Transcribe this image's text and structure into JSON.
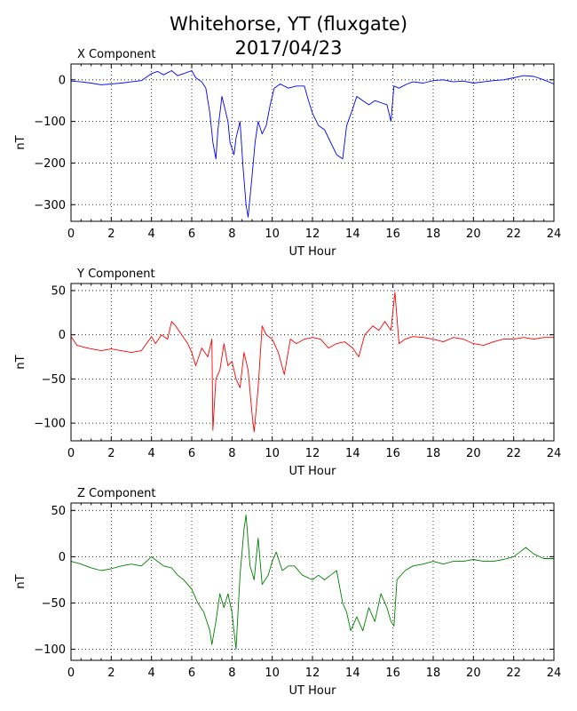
{
  "figure": {
    "title_line1": "Whitehorse, YT (fluxgate)",
    "title_line2": "2017/04/23"
  },
  "chart_data": [
    {
      "type": "line",
      "title": "X Component",
      "xlabel": "UT Hour",
      "ylabel": "nT",
      "xlim": [
        0,
        24
      ],
      "ylim": [
        -340,
        38
      ],
      "xticks": [
        0,
        2,
        4,
        6,
        8,
        10,
        12,
        14,
        16,
        18,
        20,
        22,
        24
      ],
      "yticks": [
        -300,
        -200,
        -100,
        0
      ],
      "ytick_labels": [
        "−300",
        "−200",
        "−100",
        "0"
      ],
      "grid": true,
      "color": "#0000ff",
      "x": [
        0,
        0.5,
        1,
        1.5,
        2,
        2.5,
        3,
        3.5,
        4,
        4.3,
        4.6,
        5,
        5.3,
        5.6,
        6,
        6.2,
        6.5,
        6.7,
        6.9,
        7.05,
        7.2,
        7.3,
        7.5,
        7.6,
        7.8,
        7.9,
        8.1,
        8.2,
        8.4,
        8.55,
        8.7,
        8.8,
        9,
        9.15,
        9.3,
        9.5,
        9.7,
        9.9,
        10.1,
        10.4,
        10.8,
        11.2,
        11.6,
        11.8,
        12,
        12.3,
        12.6,
        12.9,
        13.2,
        13.5,
        13.7,
        14,
        14.2,
        14.5,
        14.8,
        15.1,
        15.4,
        15.7,
        15.9,
        16.05,
        16.3,
        16.7,
        17,
        17.5,
        18,
        18.5,
        19,
        19.5,
        20,
        20.5,
        21,
        21.5,
        22,
        22.5,
        23,
        23.5,
        24
      ],
      "values": [
        -3,
        -5,
        -8,
        -12,
        -10,
        -8,
        -5,
        -2,
        15,
        20,
        12,
        22,
        10,
        15,
        22,
        5,
        -5,
        -20,
        -80,
        -150,
        -190,
        -120,
        -40,
        -60,
        -100,
        -150,
        -180,
        -140,
        -100,
        -210,
        -300,
        -330,
        -230,
        -150,
        -100,
        -130,
        -110,
        -60,
        -20,
        -10,
        -20,
        -15,
        -15,
        -50,
        -80,
        -110,
        -120,
        -150,
        -180,
        -190,
        -110,
        -70,
        -40,
        -50,
        -60,
        -50,
        -55,
        -60,
        -100,
        -15,
        -20,
        -10,
        -5,
        -8,
        -2,
        0,
        -5,
        -3,
        -8,
        -5,
        -2,
        0,
        5,
        10,
        8,
        0,
        -10
      ]
    },
    {
      "type": "line",
      "title": "Y Component",
      "xlabel": "UT Hour",
      "ylabel": "nT",
      "xlim": [
        0,
        24
      ],
      "ylim": [
        -120,
        58
      ],
      "xticks": [
        0,
        2,
        4,
        6,
        8,
        10,
        12,
        14,
        16,
        18,
        20,
        22,
        24
      ],
      "yticks": [
        -100,
        -50,
        0,
        50
      ],
      "ytick_labels": [
        "−100",
        "−50",
        "0",
        "50"
      ],
      "grid": true,
      "color": "#ff0000",
      "x": [
        0,
        0.3,
        0.8,
        1.5,
        2,
        2.5,
        3,
        3.5,
        4,
        4.2,
        4.5,
        4.8,
        5,
        5.2,
        5.5,
        5.8,
        6,
        6.2,
        6.5,
        6.8,
        7,
        7.05,
        7.2,
        7.4,
        7.6,
        7.8,
        8,
        8.2,
        8.4,
        8.6,
        8.8,
        9,
        9.1,
        9.3,
        9.5,
        9.7,
        10,
        10.3,
        10.6,
        10.9,
        11.2,
        11.6,
        12,
        12.4,
        12.8,
        13.2,
        13.6,
        14,
        14.3,
        14.6,
        15,
        15.3,
        15.6,
        15.9,
        16.1,
        16.3,
        16.6,
        17,
        17.5,
        18,
        18.5,
        19,
        19.5,
        20,
        20.5,
        21,
        21.5,
        22,
        22.5,
        23,
        23.5,
        24
      ],
      "values": [
        -2,
        -12,
        -15,
        -18,
        -16,
        -18,
        -20,
        -18,
        -2,
        -10,
        0,
        -5,
        15,
        10,
        0,
        -10,
        -20,
        -35,
        -15,
        -25,
        -5,
        -108,
        -50,
        -40,
        -10,
        -35,
        -30,
        -50,
        -60,
        -20,
        -40,
        -90,
        -110,
        -60,
        10,
        0,
        -5,
        -20,
        -45,
        -5,
        -10,
        -5,
        -3,
        -5,
        -15,
        -10,
        -8,
        -15,
        -25,
        0,
        10,
        5,
        15,
        5,
        48,
        -10,
        -5,
        -2,
        -3,
        -5,
        -8,
        -3,
        -5,
        -10,
        -12,
        -8,
        -5,
        -5,
        -3,
        -5,
        -3,
        -3
      ]
    },
    {
      "type": "line",
      "title": "Z Component",
      "xlabel": "UT Hour",
      "ylabel": "nT",
      "xlim": [
        0,
        24
      ],
      "ylim": [
        -112,
        58
      ],
      "xticks": [
        0,
        2,
        4,
        6,
        8,
        10,
        12,
        14,
        16,
        18,
        20,
        22,
        24
      ],
      "yticks": [
        -100,
        -50,
        0,
        50
      ],
      "ytick_labels": [
        "−100",
        "−50",
        "0",
        "50"
      ],
      "grid": true,
      "color": "#008000",
      "x": [
        0,
        0.5,
        1,
        1.5,
        2,
        2.5,
        3,
        3.5,
        4,
        4.3,
        4.6,
        5,
        5.3,
        5.6,
        6,
        6.3,
        6.6,
        6.9,
        7,
        7.2,
        7.4,
        7.6,
        7.8,
        8,
        8.2,
        8.4,
        8.6,
        8.7,
        8.9,
        9.1,
        9.3,
        9.5,
        9.8,
        10,
        10.2,
        10.5,
        10.8,
        11.1,
        11.5,
        12,
        12.3,
        12.6,
        12.9,
        13.2,
        13.5,
        13.7,
        13.9,
        14.2,
        14.5,
        14.8,
        15.1,
        15.4,
        15.7,
        15.9,
        16.05,
        16.2,
        16.6,
        17,
        17.5,
        18,
        18.5,
        19,
        19.5,
        20,
        20.5,
        21,
        21.5,
        22,
        22.3,
        22.6,
        23,
        23.5,
        24
      ],
      "values": [
        -5,
        -8,
        -12,
        -15,
        -13,
        -10,
        -8,
        -10,
        0,
        -5,
        -10,
        -12,
        -20,
        -25,
        -35,
        -50,
        -60,
        -80,
        -95,
        -70,
        -40,
        -55,
        -40,
        -60,
        -100,
        -20,
        30,
        45,
        -10,
        -25,
        20,
        -30,
        -20,
        -5,
        5,
        -15,
        -10,
        -10,
        -20,
        -25,
        -20,
        -25,
        -20,
        -15,
        -50,
        -60,
        -80,
        -65,
        -80,
        -55,
        -70,
        -40,
        -55,
        -70,
        -75,
        -25,
        -15,
        -10,
        -8,
        -5,
        -8,
        -5,
        -5,
        -3,
        -5,
        -5,
        -3,
        0,
        5,
        10,
        3,
        -2,
        -2
      ]
    }
  ]
}
